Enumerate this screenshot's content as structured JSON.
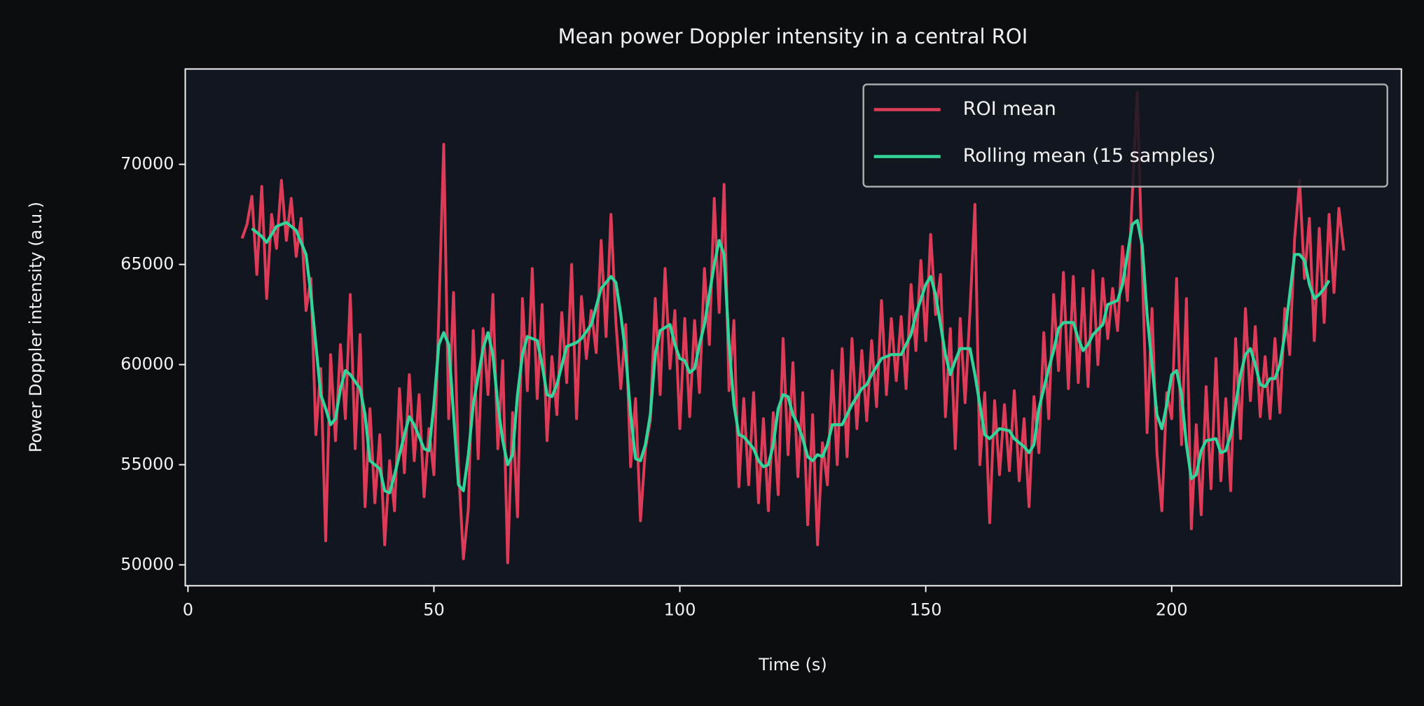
{
  "chart_data": {
    "type": "line",
    "title": "Mean power Doppler intensity in a central ROI",
    "xlabel": "Time (s)",
    "ylabel": "Power Doppler intensity (a.u.)",
    "xlim": [
      -0.55,
      246.7
    ],
    "ylim": [
      48957,
      74762
    ],
    "xticks": [
      0,
      50,
      100,
      150,
      200
    ],
    "yticks": [
      50000,
      55000,
      60000,
      65000,
      70000
    ],
    "grid": false,
    "legend": "upper right",
    "series": [
      {
        "name": "ROI mean",
        "color": "#dc3c58",
        "x": [
          11,
          12,
          13,
          14,
          15,
          16,
          17,
          18,
          19,
          20,
          21,
          22,
          23,
          24,
          25,
          26,
          27,
          28,
          29,
          30,
          31,
          32,
          33,
          34,
          35,
          36,
          37,
          38,
          39,
          40,
          41,
          42,
          43,
          44,
          45,
          46,
          47,
          48,
          49,
          50,
          51,
          52,
          53,
          54,
          55,
          56,
          57,
          58,
          59,
          60,
          61,
          62,
          63,
          64,
          65,
          66,
          67,
          68,
          69,
          70,
          71,
          72,
          73,
          74,
          75,
          76,
          77,
          78,
          79,
          80,
          81,
          82,
          83,
          84,
          85,
          86,
          87,
          88,
          89,
          90,
          91,
          92,
          93,
          94,
          95,
          96,
          97,
          98,
          99,
          100,
          101,
          102,
          103,
          104,
          105,
          106,
          107,
          108,
          109,
          110,
          111,
          112,
          113,
          114,
          115,
          116,
          117,
          118,
          119,
          120,
          121,
          122,
          123,
          124,
          125,
          126,
          127,
          128,
          129,
          130,
          131,
          132,
          133,
          134,
          135,
          136,
          137,
          138,
          139,
          140,
          141,
          142,
          143,
          144,
          145,
          146,
          147,
          148,
          149,
          150,
          151,
          152,
          153,
          154,
          155,
          156,
          157,
          158,
          159,
          160,
          161,
          162,
          163,
          164,
          165,
          166,
          167,
          168,
          169,
          170,
          171,
          172,
          173,
          174,
          175,
          176,
          177,
          178,
          179,
          180,
          181,
          182,
          183,
          184,
          185,
          186,
          187,
          188,
          189,
          190,
          191,
          192,
          193,
          194,
          195,
          196,
          197,
          198,
          199,
          200,
          201,
          202,
          203,
          204,
          205,
          206,
          207,
          208,
          209,
          210,
          211,
          212,
          213,
          214,
          215,
          216,
          217,
          218,
          219,
          220,
          221,
          222,
          223,
          224,
          225,
          226,
          227,
          228,
          229,
          230,
          231,
          232,
          233,
          234,
          235
        ],
        "values": [
          66300,
          67000,
          68400,
          64500,
          68900,
          63300,
          67500,
          65800,
          69200,
          66200,
          68300,
          65400,
          67300,
          62700,
          64300,
          56500,
          59800,
          51200,
          60500,
          56200,
          61000,
          57300,
          63500,
          55800,
          61500,
          52900,
          57800,
          53100,
          56500,
          51000,
          55200,
          52700,
          58800,
          54600,
          59500,
          55200,
          58500,
          53400,
          56800,
          54500,
          62500,
          71000,
          57300,
          63600,
          54900,
          50300,
          52800,
          61700,
          55300,
          61800,
          58500,
          63500,
          55800,
          60200,
          50100,
          57600,
          52400,
          63300,
          58700,
          64800,
          58300,
          63000,
          56200,
          60400,
          57500,
          62600,
          59100,
          65000,
          57300,
          63400,
          60300,
          62700,
          60600,
          66200,
          61400,
          67500,
          62100,
          58800,
          62000,
          54900,
          58300,
          52200,
          55800,
          57200,
          63300,
          58500,
          64800,
          59800,
          62700,
          56800,
          62300,
          57400,
          62200,
          58600,
          64800,
          61000,
          68300,
          62600,
          69000,
          58700,
          62200,
          53900,
          58300,
          54000,
          58600,
          53100,
          57300,
          52700,
          57600,
          53500,
          61300,
          55500,
          60100,
          54400,
          58600,
          52000,
          57500,
          51000,
          56100,
          54000,
          59700,
          55000,
          60800,
          55400,
          61300,
          56800,
          60700,
          57200,
          61200,
          57900,
          63200,
          58500,
          62300,
          59200,
          62400,
          58800,
          64000,
          60700,
          65200,
          61200,
          66500,
          62500,
          64500,
          57400,
          61800,
          55800,
          62300,
          58100,
          62700,
          68000,
          55000,
          58600,
          52100,
          58200,
          54500,
          58000,
          54700,
          58700,
          54200,
          57300,
          52900,
          58400,
          55600,
          61600,
          57300,
          63500,
          59700,
          64600,
          58800,
          64400,
          59100,
          63800,
          58900,
          64700,
          60000,
          64300,
          61300,
          63800,
          61700,
          65900,
          63200,
          68500,
          73600,
          65000,
          56600,
          62800,
          55600,
          52700,
          58600,
          57300,
          64300,
          56000,
          63300,
          51800,
          57000,
          52500,
          58900,
          53800,
          60300,
          54200,
          58300,
          53700,
          61300,
          56300,
          62800,
          58200,
          61900,
          57400,
          60400,
          57300,
          61300,
          57600,
          62800,
          60500,
          66300,
          69200,
          64300,
          67300,
          61200,
          66800,
          62100,
          67500,
          63600,
          67800,
          65700
        ]
      },
      {
        "name": "Rolling mean (15 samples)",
        "color": "#34d399",
        "x": [
          13,
          15,
          16,
          18,
          20,
          22,
          24,
          25,
          26,
          27,
          28,
          29,
          30,
          31,
          32,
          33,
          35,
          36,
          37,
          39,
          40,
          41,
          42,
          44,
          45,
          46,
          48,
          49,
          50,
          51,
          52,
          53,
          54,
          55,
          56,
          57,
          58,
          60,
          61,
          62,
          63,
          64,
          65,
          66,
          67,
          68,
          69,
          71,
          72,
          73,
          74,
          75,
          77,
          79,
          80,
          82,
          84,
          86,
          87,
          88,
          89,
          90,
          91,
          92,
          93,
          94,
          95,
          96,
          98,
          99,
          100,
          101,
          102,
          103,
          104,
          105,
          106,
          107,
          108,
          109,
          110,
          111,
          112,
          113,
          115,
          116,
          117,
          118,
          119,
          120,
          121,
          122,
          123,
          124,
          125,
          126,
          127,
          128,
          129,
          130,
          131,
          133,
          134,
          135,
          137,
          138,
          139,
          141,
          143,
          145,
          147,
          148,
          150,
          151,
          152,
          153,
          154,
          155,
          156,
          157,
          159,
          160,
          161,
          162,
          163,
          165,
          167,
          168,
          170,
          171,
          172,
          173,
          175,
          176,
          177,
          178,
          180,
          181,
          182,
          183,
          184,
          186,
          187,
          189,
          190,
          191,
          192,
          193,
          194,
          195,
          196,
          197,
          198,
          199,
          200,
          201,
          202,
          203,
          204,
          205,
          206,
          207,
          209,
          210,
          211,
          212,
          213,
          214,
          215,
          216,
          217,
          218,
          219,
          220,
          221,
          222,
          223,
          224,
          225,
          226,
          227,
          228,
          229,
          230,
          231,
          232
        ],
        "values": [
          66800,
          66400,
          66100,
          66900,
          67100,
          66700,
          65500,
          63500,
          61000,
          58500,
          57800,
          57000,
          57300,
          58800,
          59700,
          59500,
          58800,
          57500,
          55200,
          54800,
          53700,
          53600,
          54500,
          56500,
          57400,
          57000,
          55800,
          55700,
          58000,
          61000,
          61600,
          61000,
          57500,
          54000,
          53700,
          55500,
          58000,
          60800,
          61600,
          60500,
          58000,
          56200,
          55000,
          55500,
          58500,
          60500,
          61400,
          61200,
          60000,
          58500,
          58400,
          59000,
          60900,
          61100,
          61300,
          62000,
          63800,
          64400,
          64100,
          62500,
          60500,
          57500,
          55300,
          55200,
          56000,
          57500,
          60500,
          61700,
          62000,
          61000,
          60300,
          60200,
          59600,
          59800,
          61000,
          62000,
          63500,
          65000,
          66200,
          65500,
          61000,
          58000,
          56500,
          56400,
          55800,
          55200,
          54900,
          55000,
          56000,
          57800,
          58500,
          58400,
          57500,
          57000,
          56300,
          55400,
          55200,
          55500,
          55400,
          56000,
          57000,
          57000,
          57500,
          58000,
          58800,
          59000,
          59500,
          60300,
          60500,
          60500,
          61500,
          62500,
          64000,
          64400,
          63500,
          62000,
          60500,
          59500,
          60200,
          60800,
          60800,
          59500,
          58000,
          56500,
          56300,
          56800,
          56700,
          56300,
          55900,
          55600,
          56000,
          57800,
          59800,
          60700,
          61800,
          62100,
          62100,
          61300,
          60700,
          61000,
          61500,
          62000,
          63000,
          63200,
          64000,
          65500,
          67000,
          67200,
          66000,
          62500,
          60000,
          57500,
          56800,
          58000,
          59500,
          59700,
          58500,
          56000,
          54300,
          54500,
          55700,
          56200,
          56300,
          55600,
          55700,
          56500,
          58000,
          59500,
          60500,
          60800,
          60000,
          59000,
          58900,
          59300,
          59300,
          60000,
          61500,
          63500,
          65500,
          65500,
          65200,
          64000,
          63300,
          63500,
          63800,
          64200
        ]
      }
    ]
  }
}
